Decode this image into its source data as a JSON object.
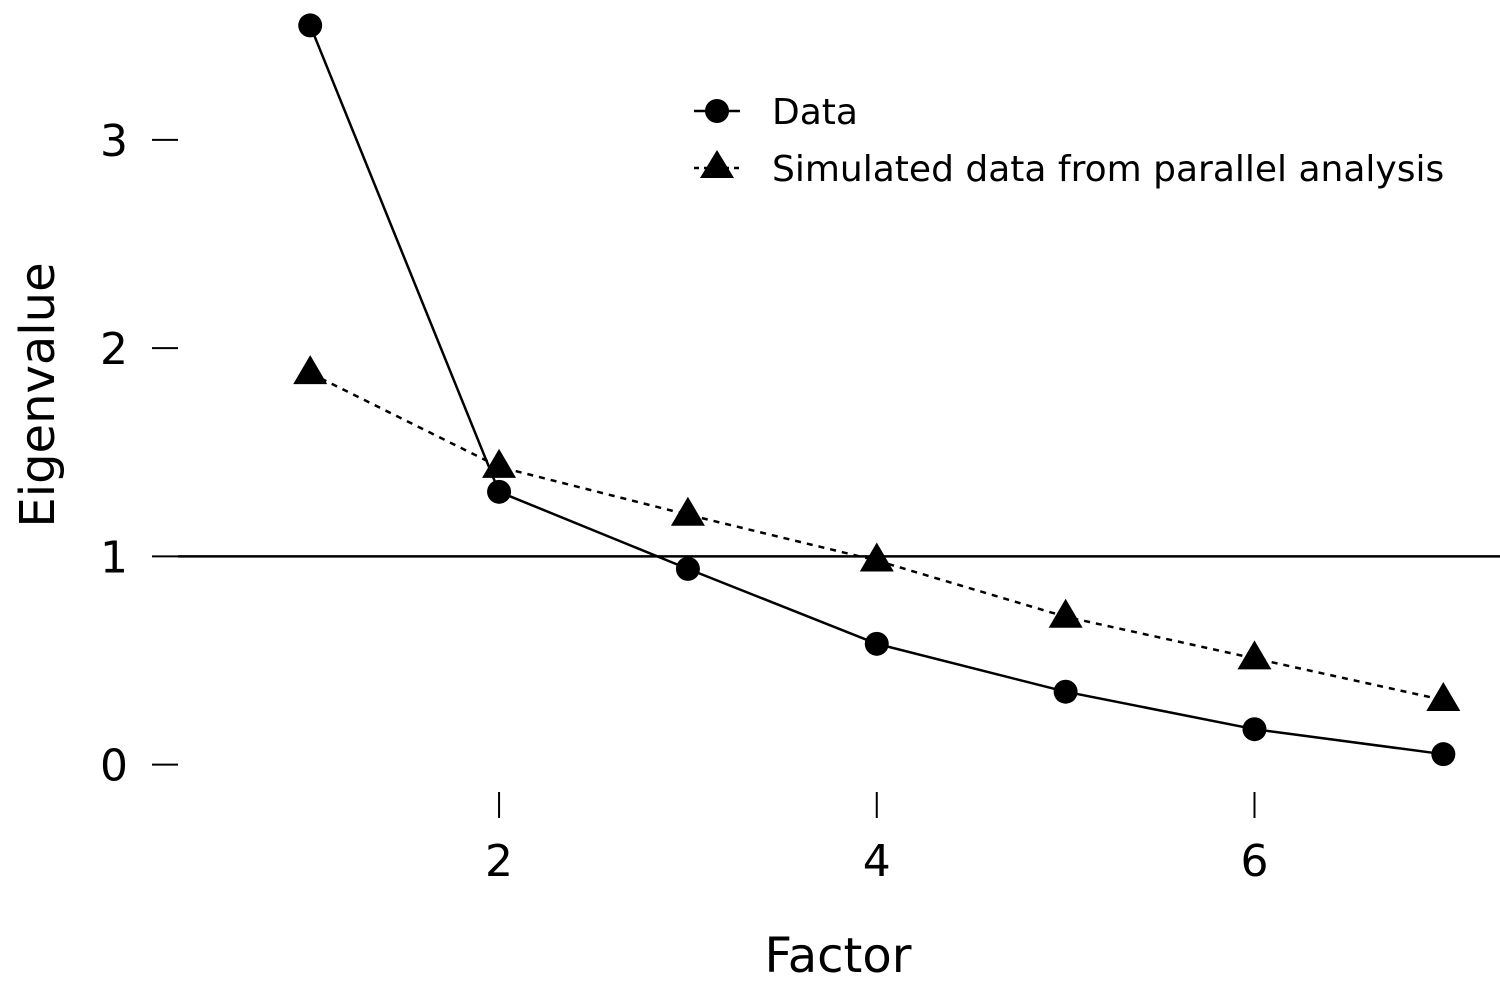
{
  "chart_data": {
    "type": "line",
    "title": "",
    "xlabel": "Factor",
    "ylabel": "Eigenvalue",
    "x": [
      1,
      2,
      3,
      4,
      5,
      6,
      7
    ],
    "xlim": [
      0.3,
      7.3
    ],
    "ylim": [
      -0.05,
      3.6
    ],
    "xticks": [
      2,
      4,
      6
    ],
    "yticks": [
      0,
      1,
      2,
      3
    ],
    "reference_line": 1,
    "grid": false,
    "legend_position": "top-right",
    "series": [
      {
        "name": "Data",
        "marker": "circle",
        "line": "solid",
        "values": [
          3.55,
          1.31,
          0.94,
          0.58,
          0.35,
          0.17,
          0.05
        ]
      },
      {
        "name": "Simulated data from parallel analysis",
        "marker": "triangle",
        "line": "dashed",
        "values": [
          1.88,
          1.43,
          1.2,
          0.98,
          0.71,
          0.51,
          0.31
        ]
      }
    ]
  }
}
